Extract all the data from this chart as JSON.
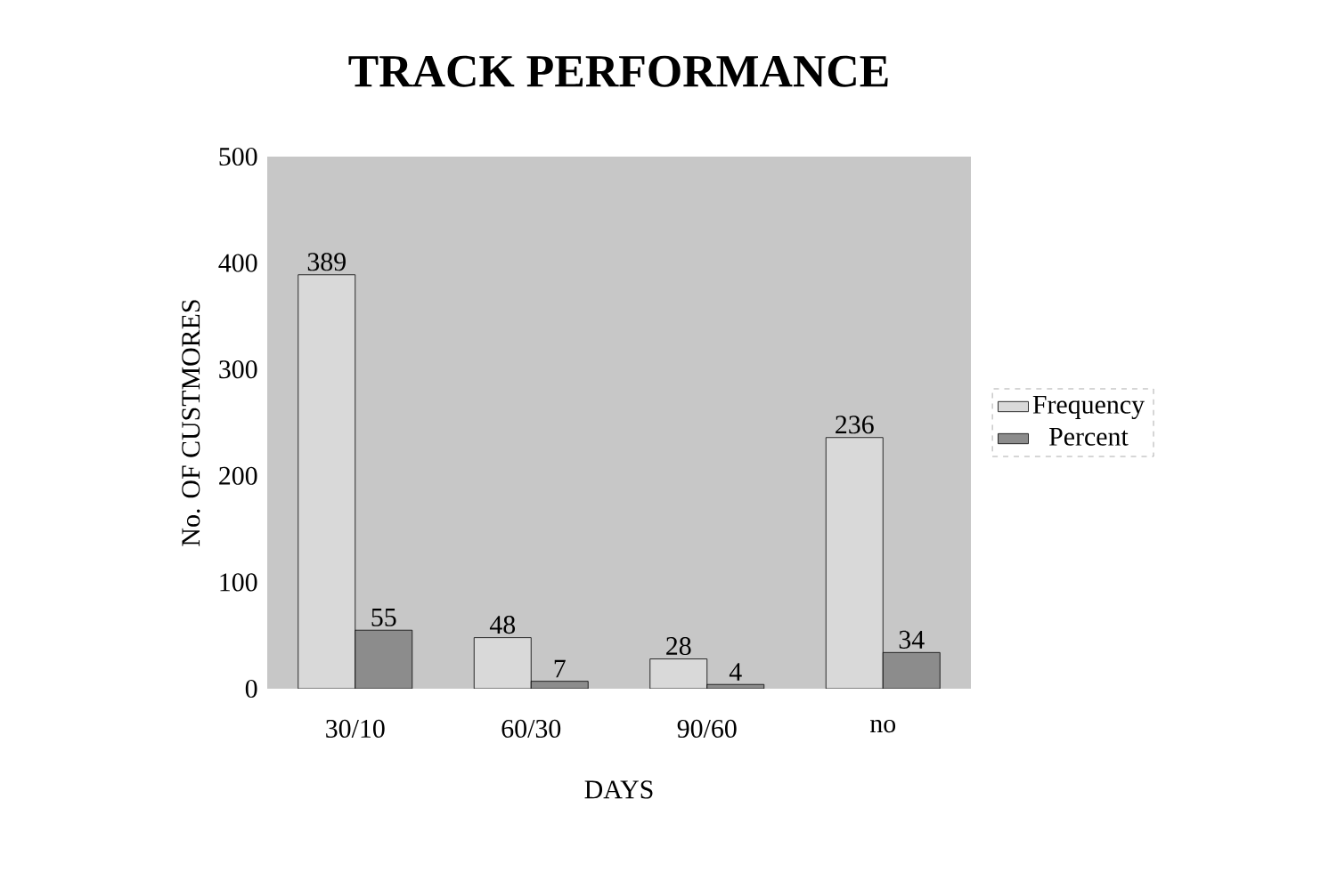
{
  "chart_data": {
    "type": "bar",
    "title": "TRACK PERFORMANCE",
    "xlabel": "DAYS",
    "ylabel": "No. OF CUSTMORES",
    "categories": [
      "30/10",
      "60/30",
      "90/60",
      "no"
    ],
    "series": [
      {
        "name": "Frequency",
        "color": "#d9d9d9",
        "values": [
          389,
          48,
          28,
          236
        ]
      },
      {
        "name": "Percent",
        "color": "#8c8c8c",
        "values": [
          55,
          7,
          4,
          34
        ]
      }
    ],
    "ylim": [
      0,
      500
    ],
    "yticks": [
      0,
      100,
      200,
      300,
      400,
      500
    ],
    "data_labels": true,
    "legend": "right",
    "grid": false
  }
}
